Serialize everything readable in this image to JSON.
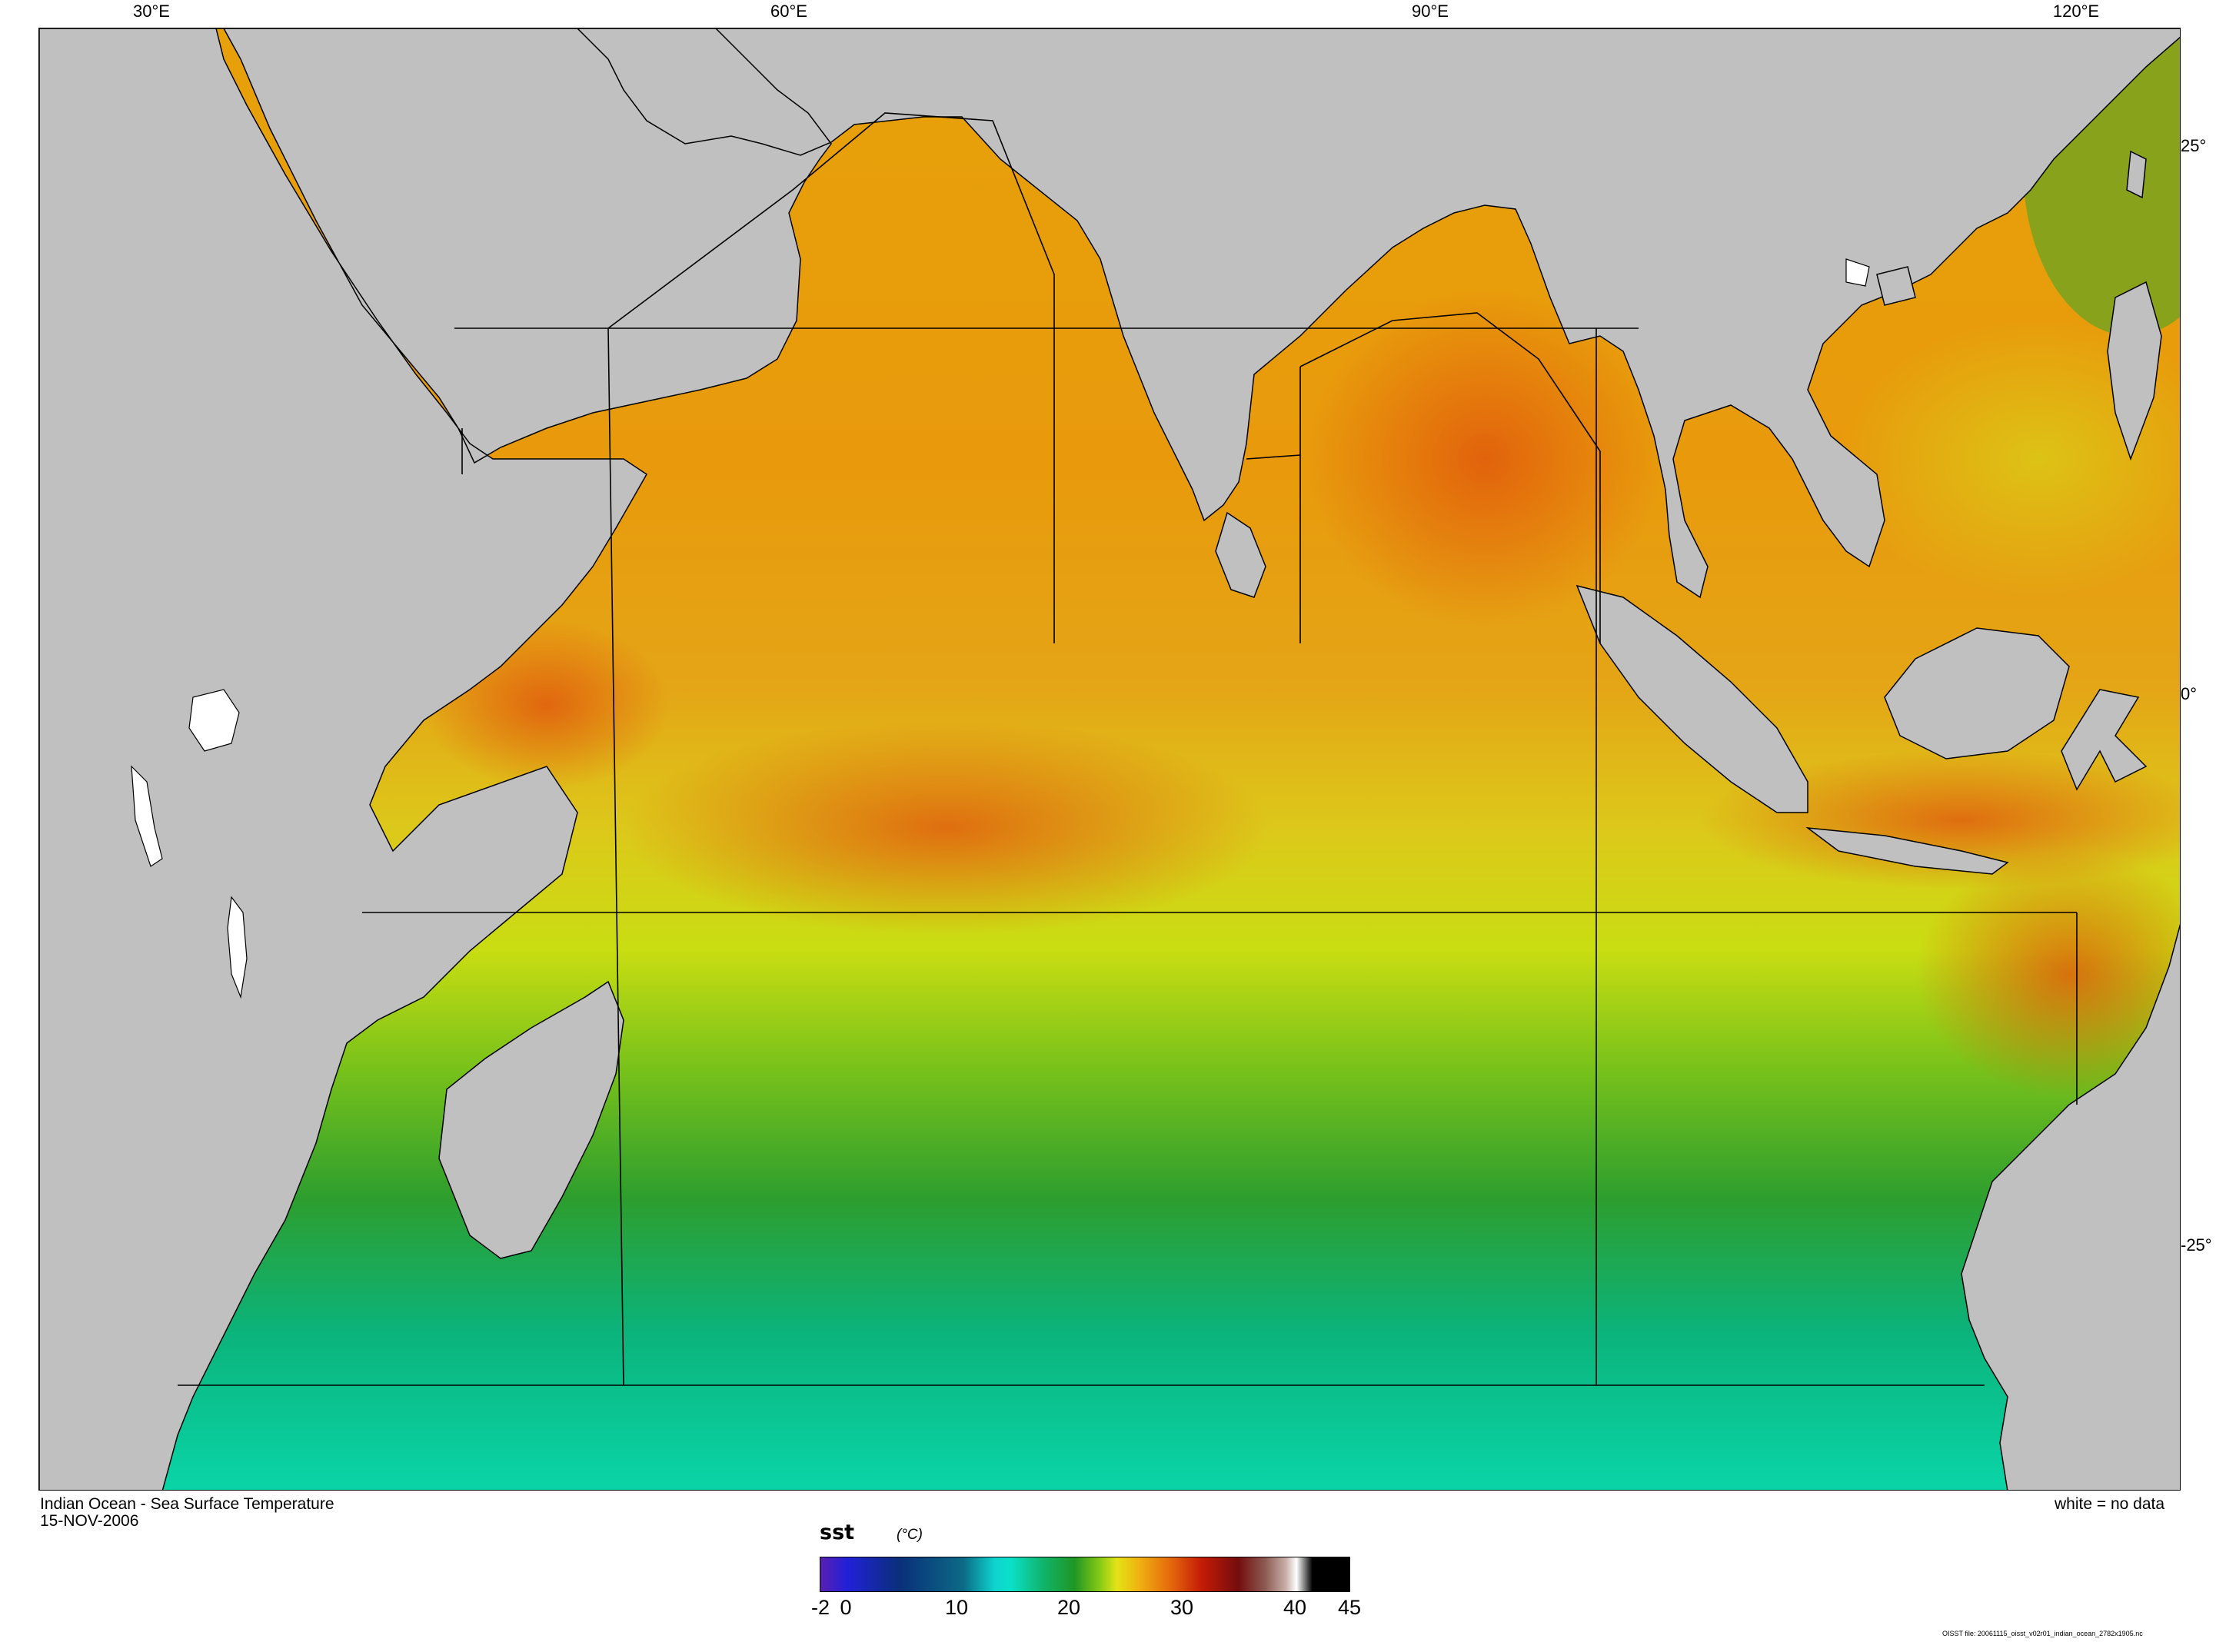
{
  "map": {
    "top_axis_labels": [
      "30°E",
      "60°E",
      "90°E",
      "120°E"
    ],
    "right_axis_labels": [
      "25°",
      "0°",
      "-25°"
    ],
    "land_color": "#c0c0c0",
    "border_color": "#000000"
  },
  "info": {
    "title": "Indian Ocean - Sea Surface Temperature",
    "date": "15-NOV-2006",
    "no_data_note": "white = no data"
  },
  "colorbar": {
    "variable": "sst",
    "units": "(°C)",
    "tick_labels": [
      "-2",
      "0",
      "10",
      "20",
      "30",
      "40",
      "45"
    ],
    "range": [
      -2,
      45
    ]
  },
  "footnote": "OISST file: 20061115_oisst_v02r01_indian_ocean_2782x1905.nc"
}
